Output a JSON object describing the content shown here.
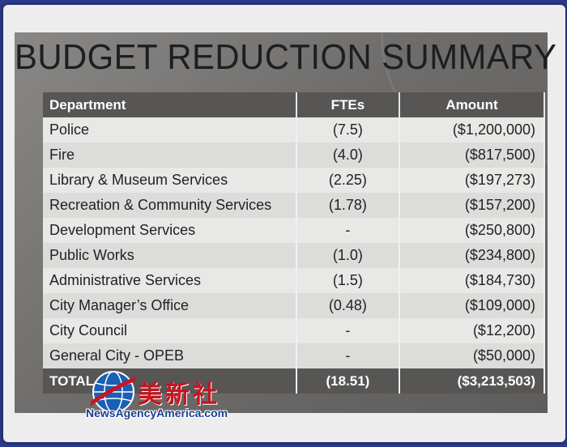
{
  "slide": {
    "title": "BUDGET REDUCTION SUMMARY"
  },
  "table": {
    "headers": {
      "department": "Department",
      "ftes": "FTEs",
      "amount": "Amount"
    },
    "rows": [
      {
        "department": "Police",
        "ftes": "(7.5)",
        "amount": "($1,200,000)"
      },
      {
        "department": "Fire",
        "ftes": "(4.0)",
        "amount": "($817,500)"
      },
      {
        "department": "Library & Museum Services",
        "ftes": "(2.25)",
        "amount": "($197,273)"
      },
      {
        "department": "Recreation & Community Services",
        "ftes": "(1.78)",
        "amount": "($157,200)"
      },
      {
        "department": "Development Services",
        "ftes": "-",
        "amount": "($250,800)"
      },
      {
        "department": "Public Works",
        "ftes": "(1.0)",
        "amount": "($234,800)"
      },
      {
        "department": "Administrative Services",
        "ftes": "(1.5)",
        "amount": "($184,730)"
      },
      {
        "department": "City Manager’s Office",
        "ftes": "(0.48)",
        "amount": "($109,000)"
      },
      {
        "department": "City Council",
        "ftes": "-",
        "amount": "($12,200)"
      },
      {
        "department": "General City - OPEB",
        "ftes": "-",
        "amount": "($50,000)"
      }
    ],
    "total": {
      "label": "TOTAL",
      "ftes": "(18.51)",
      "amount": "($3,213,503)"
    }
  },
  "watermark": {
    "chinese": "美新社",
    "english": "NewsAgencyAmerica.com"
  },
  "colors": {
    "background": "#2b3a8c",
    "header_row": "#575655",
    "watermark_red": "#c8141e",
    "watermark_blue": "#1a3e8f"
  }
}
